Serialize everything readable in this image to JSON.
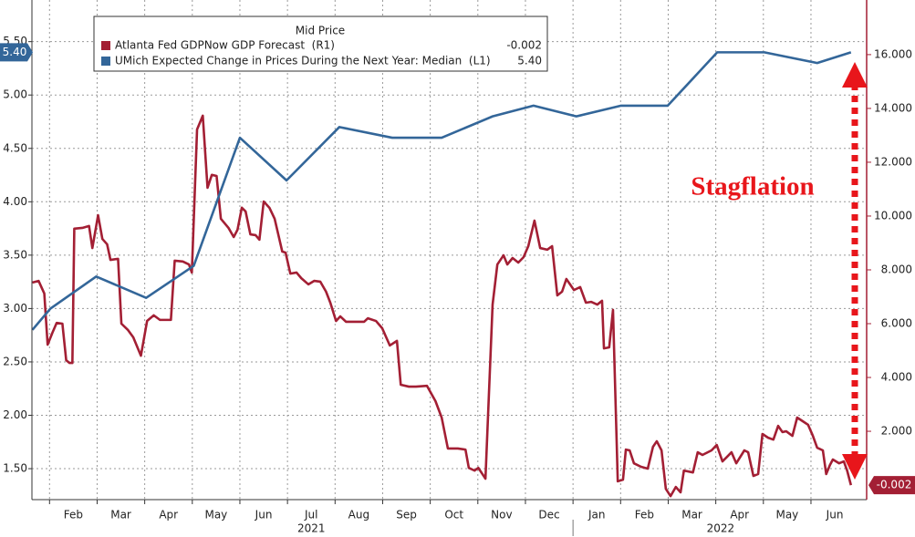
{
  "chart_data": {
    "type": "line",
    "legend": {
      "title": "Mid Price",
      "position": "upper left"
    },
    "annotation": "Stagflation",
    "grid": true,
    "xlim": [
      0.63,
      18.17
    ],
    "xticks": [
      {
        "value": 1.5,
        "label": "Feb"
      },
      {
        "value": 2.5,
        "label": "Mar"
      },
      {
        "value": 3.5,
        "label": "Apr"
      },
      {
        "value": 4.5,
        "label": "May"
      },
      {
        "value": 5.5,
        "label": "Jun"
      },
      {
        "value": 6.5,
        "label": "Jul"
      },
      {
        "value": 7.5,
        "label": "Aug"
      },
      {
        "value": 8.5,
        "label": "Sep"
      },
      {
        "value": 9.5,
        "label": "Oct"
      },
      {
        "value": 10.5,
        "label": "Nov"
      },
      {
        "value": 11.5,
        "label": "Dec"
      },
      {
        "value": 12.5,
        "label": "Jan"
      },
      {
        "value": 13.5,
        "label": "Feb"
      },
      {
        "value": 14.5,
        "label": "Mar"
      },
      {
        "value": 15.5,
        "label": "Apr"
      },
      {
        "value": 16.5,
        "label": "May"
      },
      {
        "value": 17.5,
        "label": "Jun"
      }
    ],
    "year_ticks": [
      {
        "value": 6.5,
        "label": "2021"
      },
      {
        "value": 15.1,
        "label": "2022"
      }
    ],
    "ylim": [
      1.21,
      5.89
    ],
    "yticks": [
      {
        "value": 1.5,
        "label": "1.50"
      },
      {
        "value": 2.0,
        "label": "2.00"
      },
      {
        "value": 2.5,
        "label": "2.50"
      },
      {
        "value": 3.0,
        "label": "3.00"
      },
      {
        "value": 3.5,
        "label": "3.50"
      },
      {
        "value": 4.0,
        "label": "4.00"
      },
      {
        "value": 4.5,
        "label": "4.50"
      },
      {
        "value": 5.0,
        "label": "5.00"
      },
      {
        "value": 5.5,
        "label": "5.50"
      }
    ],
    "y2lim": [
      -0.54,
      18.03
    ],
    "y2ticks": [
      {
        "value": 2,
        "label": "2.000"
      },
      {
        "value": 4,
        "label": "4.000"
      },
      {
        "value": 6,
        "label": "6.000"
      },
      {
        "value": 8,
        "label": "8.000"
      },
      {
        "value": 10,
        "label": "10.000"
      },
      {
        "value": 12,
        "label": "12.000"
      },
      {
        "value": 14,
        "label": "14.000"
      },
      {
        "value": 16,
        "label": "16.000"
      }
    ],
    "series": [
      {
        "name": "Atlanta Fed GDPNow GDP Forecast  (R1)",
        "color": "#a31f34",
        "axis": "y2",
        "last_label": "-0.002",
        "x": [
          0.64,
          0.77,
          0.89,
          0.96,
          1.06,
          1.15,
          1.27,
          1.35,
          1.42,
          1.48,
          1.52,
          1.69,
          1.83,
          1.9,
          2.02,
          2.11,
          2.21,
          2.28,
          2.44,
          2.51,
          2.65,
          2.76,
          2.92,
          3.05,
          3.19,
          3.32,
          3.55,
          3.63,
          3.8,
          3.93,
          3.99,
          4.1,
          4.22,
          4.32,
          4.41,
          4.51,
          4.6,
          4.76,
          4.87,
          4.95,
          5.04,
          5.12,
          5.22,
          5.33,
          5.41,
          5.5,
          5.62,
          5.73,
          5.89,
          5.96,
          6.06,
          6.19,
          6.29,
          6.44,
          6.56,
          6.69,
          6.81,
          6.9,
          7.02,
          7.11,
          7.23,
          7.61,
          7.69,
          7.86,
          7.99,
          8.15,
          8.3,
          8.38,
          8.55,
          8.7,
          8.93,
          9.11,
          9.24,
          9.37,
          9.58,
          9.74,
          9.81,
          9.93,
          10.01,
          10.16,
          10.31,
          10.41,
          10.54,
          10.62,
          10.73,
          10.85,
          10.96,
          11.06,
          11.19,
          11.31,
          11.46,
          11.56,
          11.67,
          11.77,
          11.86,
          12.02,
          12.15,
          12.27,
          12.38,
          12.51,
          12.61,
          12.65,
          12.76,
          12.84,
          12.94,
          13.05,
          13.11,
          13.19,
          13.28,
          13.43,
          13.57,
          13.68,
          13.76,
          13.86,
          13.95,
          14.05,
          14.16,
          14.26,
          14.33,
          14.52,
          14.62,
          14.72,
          14.91,
          15.02,
          15.14,
          15.22,
          15.33,
          15.43,
          15.6,
          15.68,
          15.79,
          15.89,
          15.98,
          16.1,
          16.21,
          16.31,
          16.4,
          16.48,
          16.61,
          16.71,
          16.83,
          16.94,
          17.04,
          17.13,
          17.25,
          17.32,
          17.4,
          17.46,
          17.59,
          17.69,
          17.76,
          17.84
        ],
        "values": [
          7.53,
          7.59,
          7.12,
          5.22,
          5.66,
          6.03,
          6.0,
          4.64,
          4.54,
          4.54,
          9.53,
          9.56,
          9.63,
          8.81,
          10.03,
          9.15,
          8.95,
          8.37,
          8.41,
          6.0,
          5.76,
          5.49,
          4.81,
          6.1,
          6.31,
          6.14,
          6.14,
          8.34,
          8.31,
          8.2,
          7.9,
          13.22,
          13.73,
          11.05,
          11.53,
          11.49,
          9.9,
          9.56,
          9.22,
          9.49,
          10.31,
          10.17,
          9.32,
          9.29,
          9.12,
          10.54,
          10.31,
          9.9,
          8.68,
          8.64,
          7.86,
          7.9,
          7.69,
          7.46,
          7.59,
          7.56,
          7.19,
          6.78,
          6.1,
          6.27,
          6.07,
          6.07,
          6.2,
          6.1,
          5.83,
          5.19,
          5.36,
          3.73,
          3.66,
          3.66,
          3.69,
          3.12,
          2.51,
          1.36,
          1.36,
          1.32,
          0.64,
          0.54,
          0.64,
          0.24,
          6.71,
          8.2,
          8.54,
          8.2,
          8.44,
          8.27,
          8.47,
          8.88,
          9.83,
          8.81,
          8.75,
          8.88,
          7.05,
          7.19,
          7.66,
          7.25,
          7.36,
          6.78,
          6.81,
          6.71,
          6.85,
          5.08,
          5.12,
          6.51,
          0.14,
          0.2,
          1.32,
          1.29,
          0.81,
          0.68,
          0.61,
          1.42,
          1.63,
          1.29,
          -0.14,
          -0.41,
          -0.07,
          -0.27,
          0.54,
          0.47,
          1.22,
          1.12,
          1.29,
          1.49,
          0.88,
          1.02,
          1.22,
          0.81,
          1.29,
          1.22,
          0.34,
          0.41,
          1.9,
          1.76,
          1.69,
          2.2,
          1.97,
          2.0,
          1.83,
          2.51,
          2.37,
          2.24,
          1.83,
          1.39,
          1.29,
          0.41,
          0.75,
          0.95,
          0.81,
          0.88,
          0.54,
          -0.002
        ]
      },
      {
        "name": "UMich Expected Change in Prices During the Next Year: Median  (L1)",
        "color": "#336699",
        "axis": "y",
        "last_label": "5.40",
        "x": [
          0.64,
          1.02,
          1.98,
          3.03,
          4.03,
          5.0,
          5.98,
          7.09,
          8.2,
          9.24,
          10.31,
          11.17,
          12.07,
          13.01,
          13.99,
          15.03,
          16.02,
          17.13,
          17.84
        ],
        "values": [
          2.8,
          3.0,
          3.3,
          3.1,
          3.4,
          4.6,
          4.2,
          4.7,
          4.6,
          4.6,
          4.8,
          4.9,
          4.8,
          4.9,
          4.9,
          5.4,
          5.4,
          5.3,
          5.4
        ]
      }
    ]
  }
}
